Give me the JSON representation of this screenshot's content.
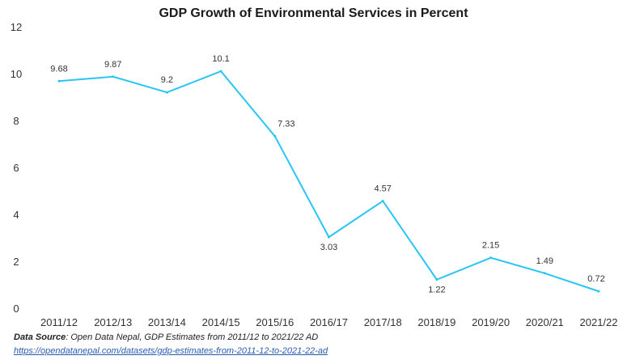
{
  "chart_data": {
    "type": "line",
    "title": "GDP Growth of Environmental Services in Percent",
    "xlabel": "",
    "ylabel": "",
    "categories": [
      "2011/12",
      "2012/13",
      "2013/14",
      "2014/15",
      "2015/16",
      "2016/17",
      "2017/18",
      "2018/19",
      "2019/20",
      "2020/21",
      "2021/22"
    ],
    "series": [
      {
        "values": [
          9.68,
          9.87,
          9.2,
          10.1,
          7.33,
          3.03,
          4.57,
          1.22,
          2.15,
          1.49,
          0.72
        ]
      }
    ],
    "data_labels": [
      "9.68",
      "9.87",
      "9.2",
      "10.1",
      "7.33",
      "3.03",
      "4.57",
      "1.22",
      "2.15",
      "1.49",
      "0.72"
    ],
    "ylim": [
      0,
      12
    ],
    "yticks": [
      0,
      2,
      4,
      6,
      8,
      10,
      12
    ],
    "grid": false,
    "line_color": "#29c5f6"
  },
  "source": {
    "label": "Data Source",
    "text": ": Open Data Nepal,  GDP Estimates from 2011/12 to 2021/22 AD",
    "link": "https://opendatanepal.com/datasets/gdp-estimates-from-2011-12-to-2021-22-ad"
  }
}
